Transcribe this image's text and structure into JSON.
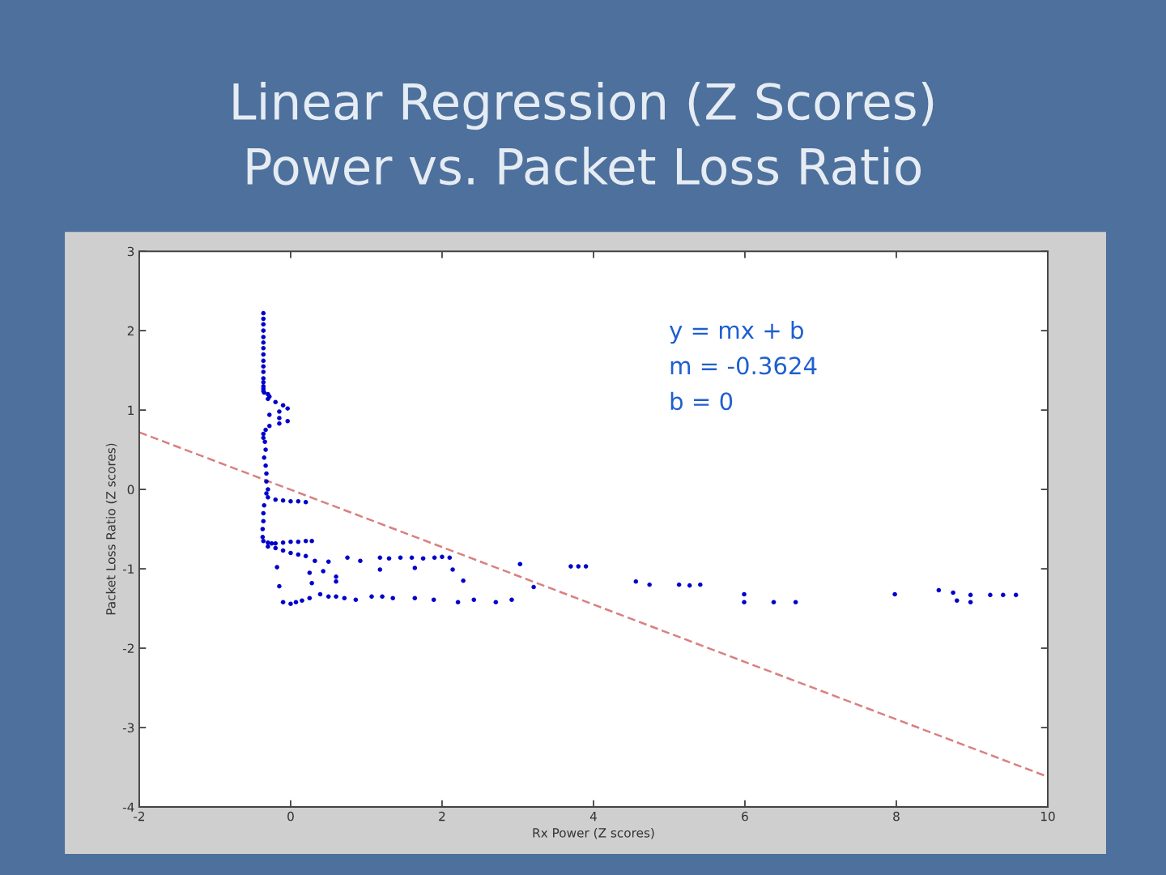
{
  "chart_data": {
    "type": "scatter",
    "title": "Linear Regression (Z Scores)\nPower vs. Packet Loss Ratio",
    "xlabel": "Rx Power (Z scores)",
    "ylabel": "Packet Loss Ratio (Z scores)",
    "annotations": [
      "y = mx + b",
      "m = -0.3624",
      "b = 0"
    ],
    "xlim": [
      -2,
      10
    ],
    "xticks": [
      -2,
      0,
      2,
      4,
      6,
      8,
      10
    ],
    "ylim": [
      -4,
      3
    ],
    "yticks": [
      -4,
      -3,
      -2,
      -1,
      0,
      1,
      2,
      3
    ],
    "marker": "circle",
    "series": [
      {
        "color": "#0000cc",
        "x": [
          -0.36,
          -0.36,
          -0.36,
          -0.36,
          -0.36,
          -0.36,
          -0.36,
          -0.36,
          -0.36,
          -0.36,
          -0.36,
          -0.36,
          -0.36,
          -0.36,
          -0.36,
          -0.36,
          -0.35,
          -0.3,
          -0.28,
          -0.3,
          -0.2,
          -0.1,
          -0.04,
          -0.15,
          -0.28,
          -0.15,
          -0.04,
          -0.15,
          -0.28,
          -0.33,
          -0.36,
          -0.36,
          -0.34,
          -0.33,
          -0.35,
          -0.33,
          -0.32,
          -0.32,
          -0.3,
          -0.32,
          -0.3,
          -0.2,
          -0.1,
          0.0,
          0.1,
          0.2,
          -0.35,
          -0.36,
          -0.36,
          -0.37,
          -0.37,
          -0.36,
          -0.3,
          -0.25,
          -0.2,
          -0.1,
          0.0,
          0.1,
          0.2,
          0.28,
          -0.3,
          -0.2,
          -0.1,
          0.0,
          0.1,
          0.2,
          -0.18,
          0.32,
          0.5,
          0.75,
          0.92,
          1.18,
          1.3,
          1.45,
          1.6,
          1.75,
          1.9,
          2.0,
          2.1,
          0.25,
          0.43,
          0.6,
          1.18,
          1.64,
          2.14,
          3.03,
          3.7,
          3.8,
          3.9,
          4.56,
          4.74,
          5.13,
          5.27,
          5.41,
          -0.15,
          0.28,
          0.6,
          2.28,
          3.21,
          -0.1,
          0.0,
          0.07,
          0.15,
          0.25,
          0.39,
          0.5,
          0.6,
          0.71,
          0.86,
          1.07,
          1.21,
          1.35,
          1.64,
          1.89,
          2.21,
          2.42,
          2.71,
          2.92,
          5.99,
          5.99,
          6.38,
          6.67,
          7.98,
          8.56,
          8.75,
          8.98,
          9.24,
          9.41,
          9.58,
          8.8,
          8.98
        ],
        "values": [
          2.22,
          2.15,
          2.08,
          2.0,
          1.92,
          1.85,
          1.78,
          1.7,
          1.62,
          1.55,
          1.48,
          1.4,
          1.35,
          1.3,
          1.27,
          1.24,
          1.22,
          1.2,
          1.17,
          1.14,
          1.1,
          1.06,
          1.02,
          0.98,
          0.94,
          0.9,
          0.86,
          0.83,
          0.8,
          0.75,
          0.7,
          0.65,
          0.6,
          0.5,
          0.4,
          0.3,
          0.2,
          0.1,
          0.0,
          -0.05,
          -0.1,
          -0.13,
          -0.14,
          -0.15,
          -0.15,
          -0.16,
          -0.2,
          -0.3,
          -0.4,
          -0.5,
          -0.6,
          -0.65,
          -0.67,
          -0.68,
          -0.68,
          -0.67,
          -0.66,
          -0.66,
          -0.65,
          -0.65,
          -0.72,
          -0.74,
          -0.77,
          -0.8,
          -0.82,
          -0.84,
          -0.98,
          -0.9,
          -0.91,
          -0.86,
          -0.9,
          -0.86,
          -0.87,
          -0.86,
          -0.86,
          -0.87,
          -0.86,
          -0.85,
          -0.86,
          -1.05,
          -1.03,
          -1.1,
          -1.01,
          -0.99,
          -1.01,
          -0.94,
          -0.97,
          -0.97,
          -0.97,
          -1.16,
          -1.2,
          -1.2,
          -1.21,
          -1.2,
          -1.22,
          -1.18,
          -1.16,
          -1.15,
          -1.23,
          -1.42,
          -1.44,
          -1.42,
          -1.4,
          -1.37,
          -1.32,
          -1.35,
          -1.35,
          -1.37,
          -1.39,
          -1.35,
          -1.35,
          -1.37,
          -1.37,
          -1.39,
          -1.42,
          -1.39,
          -1.42,
          -1.39,
          -1.32,
          -1.42,
          -1.42,
          -1.42,
          -1.32,
          -1.27,
          -1.3,
          -1.33,
          -1.33,
          -1.33,
          -1.33,
          -1.4,
          -1.42
        ]
      },
      {
        "type": "line",
        "color": "#d98080",
        "line_style": "dashed",
        "marker": "none",
        "x": [
          -2,
          10
        ],
        "values": [
          0.72,
          -3.62
        ]
      }
    ]
  }
}
